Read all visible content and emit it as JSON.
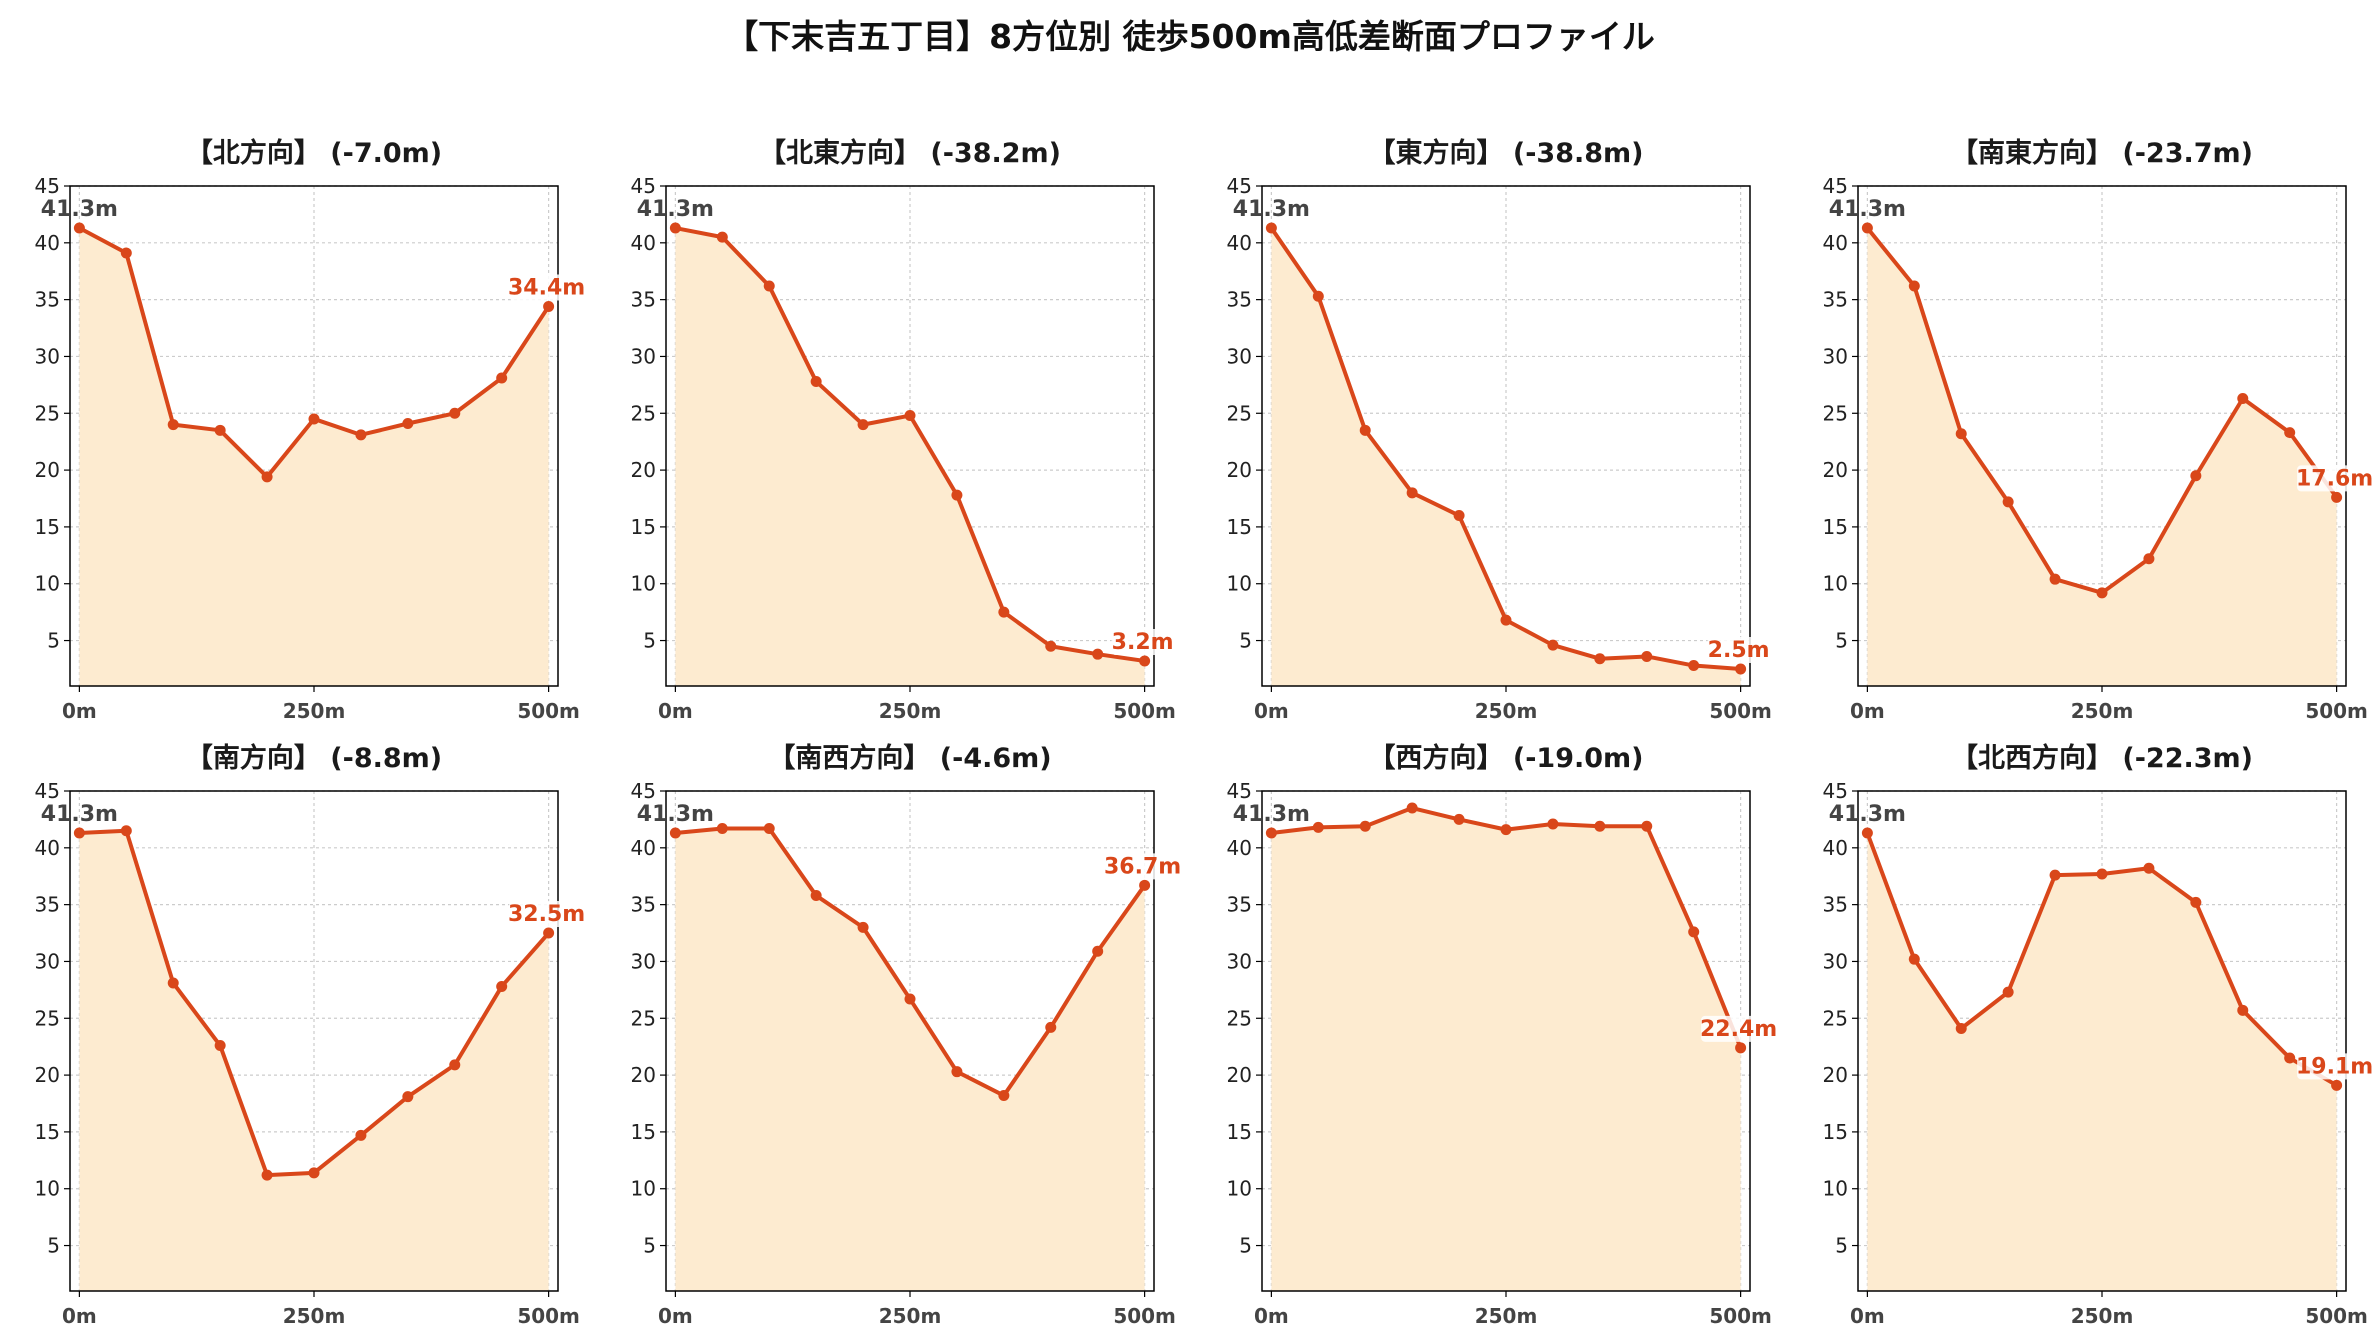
{
  "title": "【下末吉五丁目】8方位別 徒歩500m高低差断面プロファイル",
  "colors": {
    "line": "#d9471a",
    "fill": "#fdebd0",
    "grid": "#cccccc",
    "start_label": "#444444",
    "end_label": "#d9471a"
  },
  "chart_data": [
    {
      "type": "area",
      "title": "【北方向】 (-7.0m)",
      "x": [
        0,
        50,
        100,
        150,
        200,
        250,
        300,
        350,
        400,
        450,
        500
      ],
      "y": [
        41.3,
        39.1,
        24.0,
        23.5,
        19.4,
        24.5,
        23.1,
        24.1,
        25.0,
        28.1,
        34.4
      ],
      "start_label": "41.3m",
      "end_label": "34.4m",
      "ylim": [
        1,
        45
      ],
      "yticks": [
        5,
        10,
        15,
        20,
        25,
        30,
        35,
        40,
        45
      ],
      "xticks": [
        0,
        250,
        500
      ],
      "xtick_labels": [
        "0m",
        "250m",
        "500m"
      ],
      "xlim": [
        -10,
        510
      ],
      "grid": true
    },
    {
      "type": "area",
      "title": "【北東方向】 (-38.2m)",
      "x": [
        0,
        50,
        100,
        150,
        200,
        250,
        300,
        350,
        400,
        450,
        500
      ],
      "y": [
        41.3,
        40.5,
        36.2,
        27.8,
        24.0,
        24.8,
        17.8,
        7.5,
        4.5,
        3.8,
        3.2
      ],
      "start_label": "41.3m",
      "end_label": "3.2m",
      "ylim": [
        1,
        45
      ],
      "yticks": [
        5,
        10,
        15,
        20,
        25,
        30,
        35,
        40,
        45
      ],
      "xticks": [
        0,
        250,
        500
      ],
      "xtick_labels": [
        "0m",
        "250m",
        "500m"
      ],
      "xlim": [
        -10,
        510
      ],
      "grid": true
    },
    {
      "type": "area",
      "title": "【東方向】 (-38.8m)",
      "x": [
        0,
        50,
        100,
        150,
        200,
        250,
        300,
        350,
        400,
        450,
        500
      ],
      "y": [
        41.3,
        35.3,
        23.5,
        18.0,
        16.0,
        6.8,
        4.6,
        3.4,
        3.6,
        2.8,
        2.5
      ],
      "start_label": "41.3m",
      "end_label": "2.5m",
      "ylim": [
        1,
        45
      ],
      "yticks": [
        5,
        10,
        15,
        20,
        25,
        30,
        35,
        40,
        45
      ],
      "xticks": [
        0,
        250,
        500
      ],
      "xtick_labels": [
        "0m",
        "250m",
        "500m"
      ],
      "xlim": [
        -10,
        510
      ],
      "grid": true
    },
    {
      "type": "area",
      "title": "【南東方向】 (-23.7m)",
      "x": [
        0,
        50,
        100,
        150,
        200,
        250,
        300,
        350,
        400,
        450,
        500
      ],
      "y": [
        41.3,
        36.2,
        23.2,
        17.2,
        10.4,
        9.2,
        12.2,
        19.5,
        26.3,
        23.3,
        17.6
      ],
      "start_label": "41.3m",
      "end_label": "17.6m",
      "ylim": [
        1,
        45
      ],
      "yticks": [
        5,
        10,
        15,
        20,
        25,
        30,
        35,
        40,
        45
      ],
      "xticks": [
        0,
        250,
        500
      ],
      "xtick_labels": [
        "0m",
        "250m",
        "500m"
      ],
      "xlim": [
        -10,
        510
      ],
      "grid": true
    },
    {
      "type": "area",
      "title": "【南方向】 (-8.8m)",
      "x": [
        0,
        50,
        100,
        150,
        200,
        250,
        300,
        350,
        400,
        450,
        500
      ],
      "y": [
        41.3,
        41.5,
        28.1,
        22.6,
        11.2,
        11.4,
        14.7,
        18.1,
        20.9,
        27.8,
        32.5
      ],
      "start_label": "41.3m",
      "end_label": "32.5m",
      "ylim": [
        1,
        45
      ],
      "yticks": [
        5,
        10,
        15,
        20,
        25,
        30,
        35,
        40,
        45
      ],
      "xticks": [
        0,
        250,
        500
      ],
      "xtick_labels": [
        "0m",
        "250m",
        "500m"
      ],
      "xlim": [
        -10,
        510
      ],
      "grid": true
    },
    {
      "type": "area",
      "title": "【南西方向】 (-4.6m)",
      "x": [
        0,
        50,
        100,
        150,
        200,
        250,
        300,
        350,
        400,
        450,
        500
      ],
      "y": [
        41.3,
        41.7,
        41.7,
        35.8,
        33.0,
        26.7,
        20.3,
        18.2,
        24.2,
        30.9,
        36.7
      ],
      "start_label": "41.3m",
      "end_label": "36.7m",
      "ylim": [
        1,
        45
      ],
      "yticks": [
        5,
        10,
        15,
        20,
        25,
        30,
        35,
        40,
        45
      ],
      "xticks": [
        0,
        250,
        500
      ],
      "xtick_labels": [
        "0m",
        "250m",
        "500m"
      ],
      "xlim": [
        -10,
        510
      ],
      "grid": true
    },
    {
      "type": "area",
      "title": "【西方向】 (-19.0m)",
      "x": [
        0,
        50,
        100,
        150,
        200,
        250,
        300,
        350,
        400,
        450,
        500
      ],
      "y": [
        41.3,
        41.8,
        41.9,
        43.5,
        42.5,
        41.6,
        42.1,
        41.9,
        41.9,
        32.6,
        22.4
      ],
      "start_label": "41.3m",
      "end_label": "22.4m",
      "ylim": [
        1,
        45
      ],
      "yticks": [
        5,
        10,
        15,
        20,
        25,
        30,
        35,
        40,
        45
      ],
      "xticks": [
        0,
        250,
        500
      ],
      "xtick_labels": [
        "0m",
        "250m",
        "500m"
      ],
      "xlim": [
        -10,
        510
      ],
      "grid": true
    },
    {
      "type": "area",
      "title": "【北西方向】 (-22.3m)",
      "x": [
        0,
        50,
        100,
        150,
        200,
        250,
        300,
        350,
        400,
        450,
        500
      ],
      "y": [
        41.3,
        30.2,
        24.1,
        27.3,
        37.6,
        37.7,
        38.2,
        35.2,
        25.7,
        21.5,
        19.1
      ],
      "start_label": "41.3m",
      "end_label": "19.1m",
      "ylim": [
        1,
        45
      ],
      "yticks": [
        5,
        10,
        15,
        20,
        25,
        30,
        35,
        40,
        45
      ],
      "xticks": [
        0,
        250,
        500
      ],
      "xtick_labels": [
        "0m",
        "250m",
        "500m"
      ],
      "xlim": [
        -10,
        510
      ],
      "grid": true
    }
  ]
}
